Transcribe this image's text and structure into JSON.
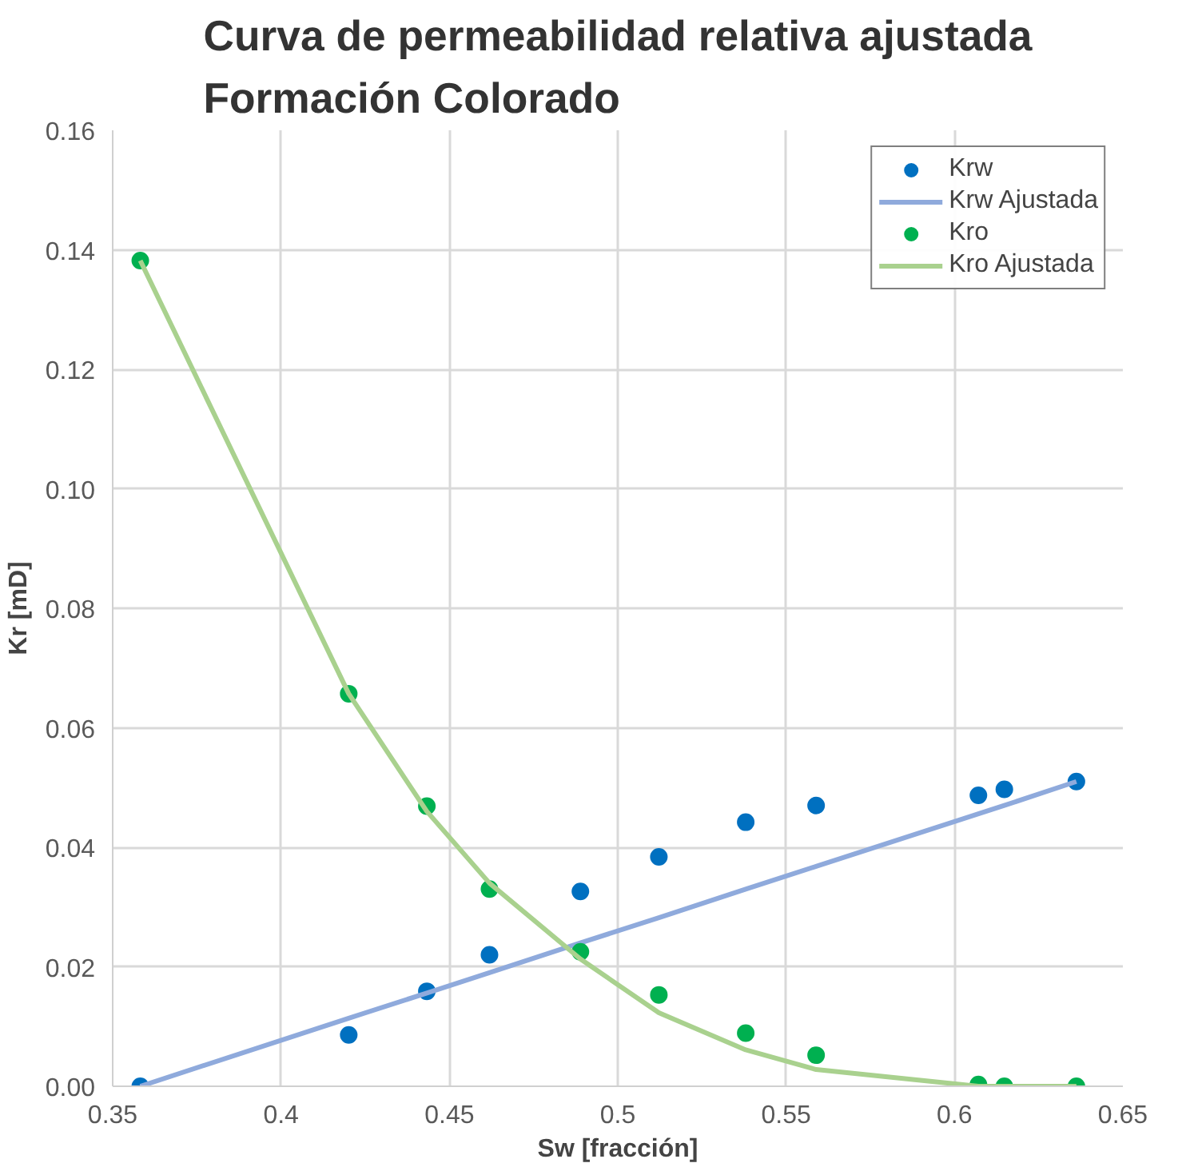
{
  "chart_data": {
    "type": "scatter",
    "title": "Curva de permeabilidad relativa ajustada\nFormación Colorado",
    "xlabel": "Sw [fracción]",
    "ylabel": "Kr [mD]",
    "x": [
      0.3582,
      0.4201,
      0.4433,
      0.4619,
      0.4889,
      0.5122,
      0.538,
      0.5589,
      0.6071,
      0.6148,
      0.6362
    ],
    "series": [
      {
        "name": "Krw",
        "marker": "circle",
        "color": "#0070c0",
        "values": [
          0,
          0.0086,
          0.0159,
          0.022,
          0.0326,
          0.0384,
          0.0442,
          0.047,
          0.0487,
          0.0497,
          0.051
        ]
      },
      {
        "name": "Krw Ajustada",
        "type": "line",
        "marker": "none",
        "color": "#8faadc",
        "values": [
          0,
          0.0114,
          0.0156,
          0.019,
          0.024,
          0.0282,
          0.033,
          0.0368,
          0.0456,
          0.047,
          0.051
        ]
      },
      {
        "name": "Kro",
        "marker": "circle",
        "color": "#00b050",
        "values": [
          0.1382,
          0.0657,
          0.0469,
          0.033,
          0.0225,
          0.0153,
          0.0089,
          0.0052,
          0.0003,
          0,
          0
        ]
      },
      {
        "name": "Kro Ajustada",
        "type": "line",
        "marker": "none",
        "color": "#a9d18e",
        "values": [
          0.1382,
          0.0657,
          0.046,
          0.034,
          0.0213,
          0.0123,
          0.0061,
          0.0028,
          0,
          0,
          0
        ]
      }
    ],
    "xlim": [
      0.35,
      0.65
    ],
    "xticks": [
      0.35,
      0.4,
      0.45,
      0.5,
      0.55,
      0.6,
      0.65
    ],
    "ylim": [
      0,
      0.16
    ],
    "yticks": [
      {
        "value": 0,
        "label": "0.00"
      },
      {
        "value": 0.02,
        "label": "0.02"
      },
      {
        "value": 0.04,
        "label": "0.04"
      },
      {
        "value": 0.06,
        "label": "0.06"
      },
      {
        "value": 0.08,
        "label": "0.08"
      },
      {
        "value": 0.1,
        "label": "0.10"
      },
      {
        "value": 0.12,
        "label": "0.12"
      },
      {
        "value": 0.14,
        "label": "0.14"
      },
      {
        "value": 0.16,
        "label": "0.16"
      }
    ],
    "grid": true,
    "legend": "top right"
  }
}
